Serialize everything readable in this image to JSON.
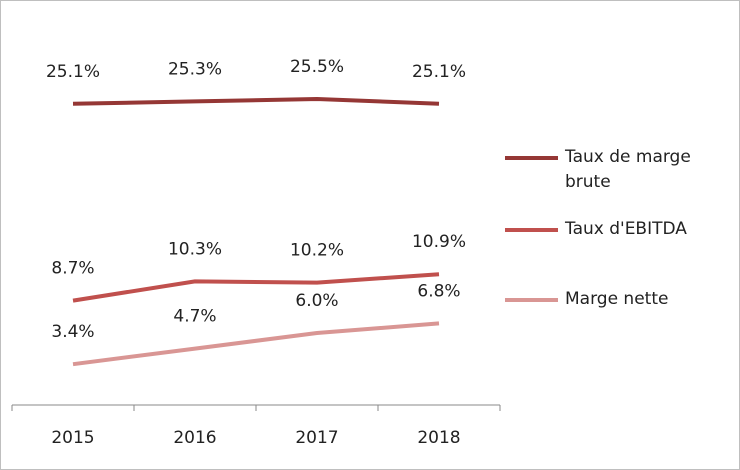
{
  "chart_data": {
    "type": "line",
    "categories": [
      "2015",
      "2016",
      "2017",
      "2018"
    ],
    "ylim": [
      0,
      30
    ],
    "series": [
      {
        "name": "Taux de marge brute",
        "color": "#953735",
        "values": [
          25.1,
          25.3,
          25.5,
          25.1
        ],
        "value_labels": [
          "25.1%",
          "25.3%",
          "25.5%",
          "25.1%"
        ]
      },
      {
        "name": "Taux d'EBITDA",
        "color": "#c0504d",
        "values": [
          8.7,
          10.3,
          10.2,
          10.9
        ],
        "value_labels": [
          "8.7%",
          "10.3%",
          "10.2%",
          "10.9%"
        ]
      },
      {
        "name": "Marge nette",
        "color": "#d99694",
        "values": [
          3.4,
          4.7,
          6.0,
          6.8
        ],
        "value_labels": [
          "3.4%",
          "4.7%",
          "6.0%",
          "6.8%"
        ]
      }
    ]
  }
}
